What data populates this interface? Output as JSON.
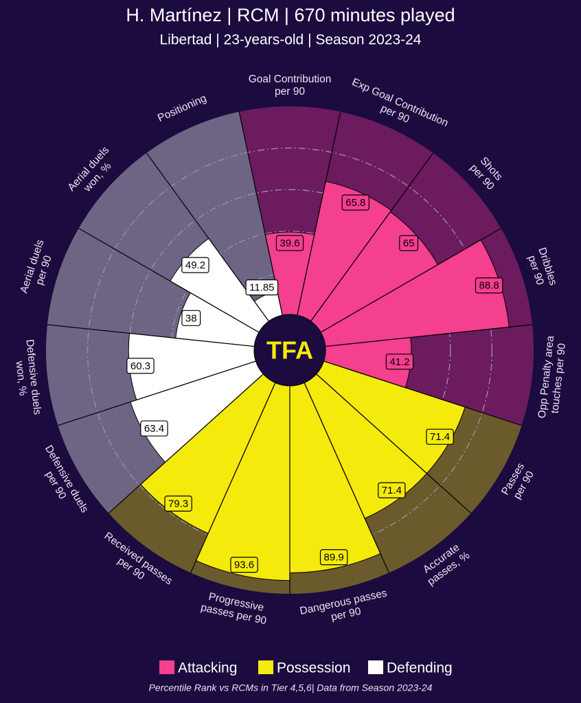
{
  "chart_data": {
    "type": "pizza",
    "title": "H. Martínez | RCM | 670 minutes played",
    "subtitle": "Libertad | 23-years-old | Season 2023-24",
    "logo": "TFA",
    "footer": "Percentile Rank vs RCMs in Tier 4,5,6| Data from Season 2023-24",
    "categories": [
      "Goal Contribution\nper 90",
      "Exp Goal Contribution\nper 90",
      "Shots\nper 90",
      "Dribbles\nper 90",
      "Opp Penalty area\ntouches per 90",
      "Passes\nper 90",
      "Accurate\npasses, %",
      "Dangerous passes\nper 90",
      "Progressive\npasses per 90",
      "Received passes\nper 90",
      "Defensive duels\nper 90",
      "Defensive duels\nwon, %",
      "Aerial duels\nper 90",
      "Aerial duels\nwon, %",
      "Positioning"
    ],
    "series": [
      {
        "name": "Attacking",
        "color": "#f53f8f",
        "background": "#6c1b5e",
        "values": [
          39.6,
          65.8,
          65.0,
          88.8,
          41.2,
          null,
          null,
          null,
          null,
          null,
          null,
          null,
          null,
          null,
          null
        ]
      },
      {
        "name": "Possession",
        "color": "#f4ea0c",
        "background": "#6b5a2c",
        "values": [
          null,
          null,
          null,
          null,
          null,
          71.4,
          71.4,
          89.9,
          93.6,
          79.3,
          null,
          null,
          null,
          null,
          null
        ]
      },
      {
        "name": "Defending",
        "color": "#ffffff",
        "background": "#6e6584",
        "values": [
          null,
          null,
          null,
          null,
          null,
          null,
          null,
          null,
          null,
          null,
          63.4,
          60.3,
          38.0,
          49.2,
          11.85
        ]
      }
    ],
    "ylim": [
      0,
      100
    ],
    "yticks": [
      20,
      40,
      60,
      80
    ]
  }
}
